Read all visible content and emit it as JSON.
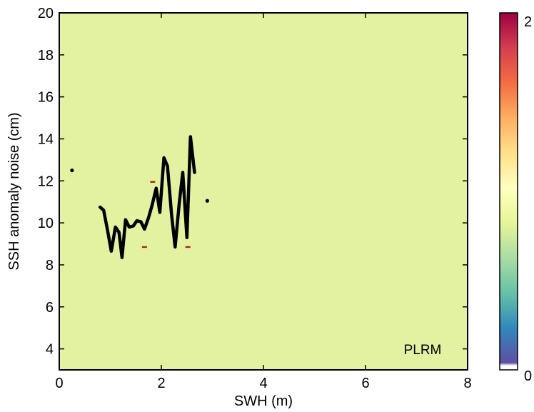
{
  "chart_data": {
    "type": "line",
    "xlabel": "SWH (m)",
    "ylabel": "SSH anomaly noise (cm)",
    "annotation": "PLRM",
    "xlim": [
      0,
      8
    ],
    "ylim": [
      3,
      20
    ],
    "xticks": [
      0,
      2,
      4,
      6,
      8
    ],
    "yticks": [
      4,
      6,
      8,
      10,
      12,
      14,
      16,
      18,
      20
    ],
    "background_color": "#e2f2a0",
    "grid": false,
    "series": [
      {
        "color": "#000000",
        "x": [
          0.8,
          0.87,
          0.95,
          1.02,
          1.1,
          1.17,
          1.23,
          1.3,
          1.37,
          1.45,
          1.52,
          1.6,
          1.67,
          1.75,
          1.82,
          1.9,
          1.97,
          2.05,
          2.12,
          2.2,
          2.27,
          2.35,
          2.42,
          2.5,
          2.57,
          2.65
        ],
        "y": [
          10.75,
          10.6,
          9.6,
          8.65,
          9.8,
          9.55,
          8.35,
          10.15,
          9.8,
          9.85,
          10.1,
          10.05,
          9.7,
          10.25,
          10.85,
          11.65,
          10.5,
          13.1,
          12.7,
          10.4,
          8.85,
          10.9,
          12.4,
          9.3,
          14.1,
          12.4
        ]
      }
    ],
    "scatter_points": [
      {
        "x": 0.25,
        "y": 12.5,
        "color": "#000000"
      },
      {
        "x": 2.9,
        "y": 11.05,
        "color": "#000000"
      }
    ],
    "marker_points": [
      {
        "x": 1.83,
        "y": 11.95,
        "color": "#b22222"
      },
      {
        "x": 1.67,
        "y": 8.85,
        "color": "#b22222"
      },
      {
        "x": 2.52,
        "y": 8.85,
        "color": "#b22222"
      }
    ],
    "colorbar": {
      "min": 0,
      "max": 2,
      "tick_labels": [
        "0",
        "2"
      ],
      "colormap": [
        "#ffffff",
        "#5e4fa2",
        "#3288bd",
        "#66c2a5",
        "#abdda4",
        "#e6f598",
        "#ffffbf",
        "#fee08b",
        "#fdae61",
        "#f46d43",
        "#d53e4f",
        "#9e0142"
      ]
    }
  }
}
